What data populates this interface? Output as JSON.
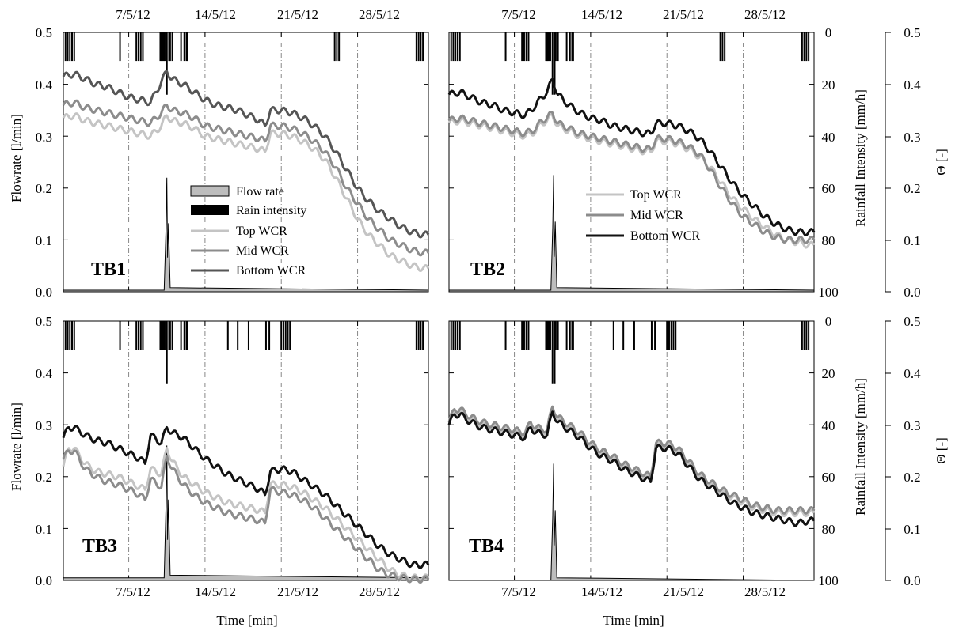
{
  "figure": {
    "xlabel": "Time [min]",
    "ylabel_left": "Flowrate [l/min]",
    "ylabel_rain": "Rainfall Intensity [mm/h]",
    "ylabel_theta": "Θ [-]",
    "date_ticks": [
      "7/5/12",
      "14/5/12",
      "21/5/12",
      "28/5/12"
    ],
    "flow_ticks": [
      "0.0",
      "0.1",
      "0.2",
      "0.3",
      "0.4",
      "0.5"
    ],
    "rain_ticks": [
      "0",
      "20",
      "40",
      "60",
      "80",
      "100"
    ],
    "theta_ticks": [
      "0.0",
      "0.1",
      "0.2",
      "0.3",
      "0.4",
      "0.5"
    ]
  },
  "legend_tb1": {
    "flow": "Flow rate",
    "rain": "Rain intensity",
    "top": "Top WCR",
    "mid": "Mid WCR",
    "bottom": "Bottom WCR"
  },
  "legend_tb2": {
    "top": "Top WCR",
    "mid": "Mid WCR",
    "bottom": "Bottom WCR"
  },
  "colors": {
    "top": "#c4c4c4",
    "mid": "#8c8c8c",
    "bottom_tb1": "#555555",
    "bottom": "#111111",
    "flow_fill": "#bdbdbd",
    "rain": "#000000"
  },
  "chart_data": [
    {
      "type": "line",
      "panel": "TB1",
      "xlabel": "",
      "x_unit": "days since 1/5/12",
      "xlim": [
        1,
        34.5
      ],
      "ylim": [
        0,
        0.5
      ],
      "rain_ylim": [
        100,
        0
      ],
      "theta_ylim": [
        0,
        0.5
      ],
      "x_day": [
        1,
        2,
        3,
        4,
        5,
        6,
        7,
        8,
        9,
        10,
        10.5,
        11,
        12,
        13,
        14,
        15,
        16,
        17,
        18,
        19,
        19.5,
        20,
        21,
        22,
        23,
        24,
        25,
        26,
        27,
        28,
        29,
        30,
        31,
        32,
        33,
        34,
        34.5
      ],
      "series": [
        {
          "name": "Top WCR",
          "values": [
            0.335,
            0.34,
            0.33,
            0.325,
            0.32,
            0.315,
            0.31,
            0.305,
            0.3,
            0.32,
            0.34,
            0.33,
            0.325,
            0.315,
            0.3,
            0.295,
            0.29,
            0.285,
            0.28,
            0.275,
            0.27,
            0.305,
            0.305,
            0.3,
            0.29,
            0.275,
            0.255,
            0.22,
            0.18,
            0.14,
            0.11,
            0.09,
            0.07,
            0.06,
            0.05,
            0.045,
            0.045
          ]
        },
        {
          "name": "Mid WCR",
          "values": [
            0.36,
            0.365,
            0.355,
            0.35,
            0.345,
            0.34,
            0.335,
            0.33,
            0.325,
            0.345,
            0.36,
            0.35,
            0.345,
            0.335,
            0.32,
            0.315,
            0.31,
            0.305,
            0.3,
            0.295,
            0.29,
            0.32,
            0.32,
            0.315,
            0.305,
            0.29,
            0.27,
            0.24,
            0.2,
            0.17,
            0.14,
            0.12,
            0.1,
            0.09,
            0.08,
            0.075,
            0.075
          ]
        },
        {
          "name": "Bottom WCR",
          "values": [
            0.415,
            0.42,
            0.41,
            0.4,
            0.395,
            0.385,
            0.375,
            0.37,
            0.365,
            0.405,
            0.425,
            0.41,
            0.4,
            0.385,
            0.37,
            0.36,
            0.355,
            0.35,
            0.34,
            0.33,
            0.32,
            0.35,
            0.35,
            0.345,
            0.335,
            0.32,
            0.3,
            0.27,
            0.235,
            0.2,
            0.175,
            0.155,
            0.14,
            0.125,
            0.115,
            0.11,
            0.11
          ]
        }
      ],
      "flow": {
        "peak_day": 10.5,
        "peak_value": 0.22,
        "baseline": 0.003
      },
      "rain_events_day": [
        1.2,
        1.4,
        1.6,
        1.8,
        2.0,
        6.2,
        7.7,
        7.9,
        8.1,
        8.3,
        9.9,
        10.0,
        10.1,
        10.2,
        10.3,
        10.5,
        10.7,
        10.8,
        11.0,
        11.8,
        12.1,
        12.3,
        12.4,
        25.9,
        26.1,
        26.3,
        33.4,
        33.6,
        33.8,
        34.0
      ]
    },
    {
      "type": "line",
      "panel": "TB2",
      "xlabel": "",
      "x_unit": "days since 1/5/12",
      "xlim": [
        1,
        34.5
      ],
      "ylim": [
        0,
        0.5
      ],
      "rain_ylim": [
        100,
        0
      ],
      "theta_ylim": [
        0,
        0.5
      ],
      "x_day": [
        1,
        2,
        3,
        4,
        5,
        6,
        7,
        8,
        9,
        9.5,
        10,
        10.5,
        11,
        12,
        13,
        14,
        15,
        16,
        17,
        18,
        19,
        19.5,
        20,
        21,
        22,
        23,
        24,
        25,
        26,
        27,
        28,
        29,
        30,
        31,
        32,
        33,
        34,
        34.5
      ],
      "series": [
        {
          "name": "Top WCR",
          "values": [
            0.325,
            0.33,
            0.325,
            0.32,
            0.315,
            0.31,
            0.305,
            0.3,
            0.31,
            0.325,
            0.33,
            0.34,
            0.32,
            0.31,
            0.3,
            0.295,
            0.29,
            0.285,
            0.28,
            0.275,
            0.27,
            0.27,
            0.29,
            0.29,
            0.285,
            0.275,
            0.26,
            0.24,
            0.21,
            0.18,
            0.16,
            0.14,
            0.125,
            0.11,
            0.1,
            0.095,
            0.09,
            0.09
          ]
        },
        {
          "name": "Mid WCR",
          "values": [
            0.33,
            0.335,
            0.33,
            0.325,
            0.32,
            0.315,
            0.31,
            0.305,
            0.315,
            0.33,
            0.335,
            0.345,
            0.325,
            0.315,
            0.305,
            0.3,
            0.295,
            0.29,
            0.285,
            0.28,
            0.275,
            0.275,
            0.295,
            0.295,
            0.29,
            0.28,
            0.265,
            0.235,
            0.2,
            0.17,
            0.145,
            0.13,
            0.115,
            0.105,
            0.1,
            0.1,
            0.1,
            0.1
          ]
        },
        {
          "name": "Bottom WCR",
          "values": [
            0.38,
            0.385,
            0.375,
            0.365,
            0.36,
            0.35,
            0.345,
            0.34,
            0.36,
            0.375,
            0.385,
            0.41,
            0.38,
            0.36,
            0.345,
            0.335,
            0.33,
            0.32,
            0.315,
            0.31,
            0.305,
            0.305,
            0.325,
            0.325,
            0.32,
            0.31,
            0.295,
            0.27,
            0.24,
            0.21,
            0.185,
            0.165,
            0.145,
            0.13,
            0.12,
            0.115,
            0.115,
            0.115
          ]
        }
      ],
      "flow": {
        "peak_day": 10.6,
        "peak_value": 0.225,
        "baseline": 0.003
      },
      "rain_events_day": [
        1.2,
        1.4,
        1.6,
        1.8,
        2.0,
        6.2,
        7.7,
        7.9,
        8.1,
        8.3,
        9.9,
        10.0,
        10.1,
        10.2,
        10.3,
        10.5,
        10.7,
        10.8,
        11.0,
        11.8,
        12.1,
        12.3,
        12.4,
        25.9,
        26.1,
        26.3,
        33.4,
        33.6,
        33.8,
        34.0
      ]
    },
    {
      "type": "line",
      "panel": "TB3",
      "xlabel": "Time [min]",
      "x_unit": "days since 1/5/12",
      "xlim": [
        1,
        34.5
      ],
      "ylim": [
        0,
        0.5
      ],
      "rain_ylim": [
        100,
        0
      ],
      "theta_ylim": [
        0,
        0.5
      ],
      "x_day": [
        1,
        1.5,
        2,
        3,
        4,
        5,
        6,
        7,
        8,
        8.5,
        9,
        10,
        10.5,
        11,
        12,
        13,
        14,
        15,
        16,
        17,
        18,
        19,
        19.5,
        20,
        21,
        22,
        23,
        24,
        25,
        26,
        27,
        28,
        29,
        30,
        31,
        32,
        33,
        34,
        34.5
      ],
      "series": [
        {
          "name": "Top WCR",
          "values": [
            0.22,
            0.255,
            0.255,
            0.225,
            0.21,
            0.205,
            0.2,
            0.19,
            0.18,
            0.175,
            0.215,
            0.205,
            0.255,
            0.23,
            0.2,
            0.185,
            0.17,
            0.16,
            0.15,
            0.145,
            0.14,
            0.135,
            0.13,
            0.185,
            0.185,
            0.18,
            0.17,
            0.155,
            0.14,
            0.12,
            0.1,
            0.08,
            0.06,
            0.04,
            0.02,
            0.01,
            0.005,
            0.005,
            0.005
          ]
        },
        {
          "name": "Mid WCR",
          "values": [
            0.235,
            0.25,
            0.25,
            0.215,
            0.2,
            0.19,
            0.185,
            0.175,
            0.165,
            0.155,
            0.195,
            0.18,
            0.24,
            0.215,
            0.185,
            0.165,
            0.15,
            0.14,
            0.13,
            0.125,
            0.12,
            0.115,
            0.11,
            0.175,
            0.17,
            0.165,
            0.155,
            0.14,
            0.12,
            0.1,
            0.08,
            0.06,
            0.04,
            0.02,
            0.01,
            0.005,
            0.002,
            0.002,
            0.002
          ]
        },
        {
          "name": "Bottom WCR",
          "values": [
            0.275,
            0.295,
            0.295,
            0.28,
            0.27,
            0.265,
            0.255,
            0.245,
            0.235,
            0.225,
            0.28,
            0.265,
            0.295,
            0.285,
            0.275,
            0.255,
            0.235,
            0.22,
            0.205,
            0.195,
            0.185,
            0.175,
            0.165,
            0.21,
            0.215,
            0.21,
            0.195,
            0.18,
            0.165,
            0.145,
            0.125,
            0.105,
            0.085,
            0.065,
            0.05,
            0.04,
            0.03,
            0.03,
            0.03
          ]
        }
      ],
      "flow": {
        "peak_day": 10.5,
        "peak_value": 0.26,
        "baseline": 0.005
      },
      "rain_events_day": [
        1.2,
        1.4,
        1.6,
        1.8,
        2.0,
        6.2,
        7.7,
        7.9,
        8.1,
        8.3,
        9.9,
        10.0,
        10.1,
        10.2,
        10.3,
        10.5,
        10.7,
        10.8,
        11.0,
        11.8,
        12.1,
        12.3,
        12.4,
        16.1,
        17.0,
        18.0,
        19.6,
        19.9,
        21.0,
        21.2,
        21.4,
        21.6,
        21.8,
        33.4,
        33.6,
        33.8,
        34.0
      ]
    },
    {
      "type": "line",
      "panel": "TB4",
      "xlabel": "Time [min]",
      "x_unit": "days since 1/5/12",
      "xlim": [
        1,
        34.5
      ],
      "ylim": [
        0,
        0.5
      ],
      "rain_ylim": [
        100,
        0
      ],
      "theta_ylim": [
        0,
        0.5
      ],
      "x_day": [
        1,
        1.5,
        2,
        3,
        4,
        5,
        6,
        7,
        8,
        8.5,
        9,
        10,
        10.5,
        11,
        12,
        13,
        14,
        15,
        16,
        17,
        18,
        19,
        19.5,
        20,
        21,
        22,
        23,
        24,
        25,
        26,
        27,
        28,
        29,
        30,
        31,
        32,
        33,
        34,
        34.5
      ],
      "series": [
        {
          "name": "Top WCR",
          "values": [
            0.3,
            0.325,
            0.325,
            0.31,
            0.3,
            0.295,
            0.29,
            0.285,
            0.28,
            0.3,
            0.29,
            0.285,
            0.33,
            0.31,
            0.295,
            0.28,
            0.26,
            0.245,
            0.235,
            0.22,
            0.21,
            0.2,
            0.195,
            0.26,
            0.26,
            0.25,
            0.225,
            0.2,
            0.185,
            0.17,
            0.16,
            0.15,
            0.14,
            0.135,
            0.13,
            0.13,
            0.13,
            0.13,
            0.13
          ]
        },
        {
          "name": "Mid WCR",
          "values": [
            0.305,
            0.33,
            0.33,
            0.315,
            0.305,
            0.3,
            0.295,
            0.29,
            0.285,
            0.305,
            0.295,
            0.29,
            0.335,
            0.315,
            0.3,
            0.285,
            0.265,
            0.25,
            0.24,
            0.225,
            0.215,
            0.205,
            0.2,
            0.265,
            0.265,
            0.255,
            0.23,
            0.205,
            0.19,
            0.175,
            0.165,
            0.155,
            0.145,
            0.14,
            0.135,
            0.135,
            0.135,
            0.135,
            0.135
          ]
        },
        {
          "name": "Bottom WCR",
          "values": [
            0.3,
            0.32,
            0.32,
            0.305,
            0.295,
            0.29,
            0.285,
            0.28,
            0.275,
            0.295,
            0.285,
            0.28,
            0.325,
            0.305,
            0.29,
            0.275,
            0.255,
            0.24,
            0.23,
            0.215,
            0.205,
            0.195,
            0.19,
            0.255,
            0.255,
            0.245,
            0.22,
            0.195,
            0.18,
            0.165,
            0.15,
            0.14,
            0.13,
            0.125,
            0.12,
            0.115,
            0.11,
            0.115,
            0.115
          ]
        }
      ],
      "flow": {
        "peak_day": 10.6,
        "peak_value": 0.225,
        "baseline": 0.0
      },
      "rain_events_day": [
        1.2,
        1.4,
        1.6,
        1.8,
        2.0,
        6.2,
        7.7,
        7.9,
        8.1,
        8.3,
        9.9,
        10.0,
        10.1,
        10.2,
        10.3,
        10.5,
        10.7,
        10.8,
        11.0,
        11.8,
        12.1,
        12.3,
        12.4,
        16.1,
        17.0,
        18.0,
        19.6,
        19.9,
        21.0,
        21.2,
        21.4,
        21.6,
        21.8,
        33.4,
        33.6,
        33.8,
        34.0
      ]
    }
  ]
}
